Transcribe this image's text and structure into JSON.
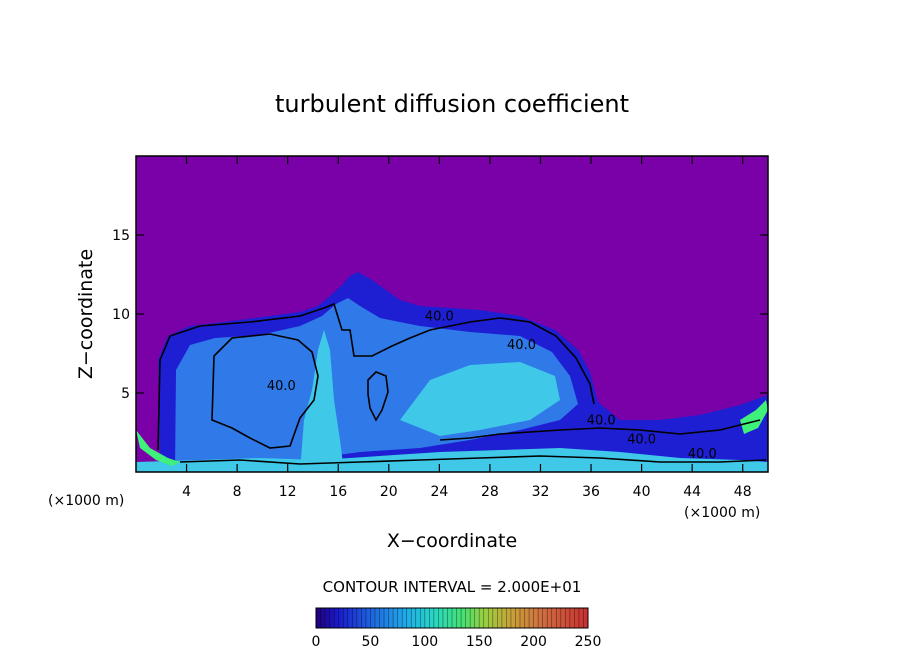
{
  "chart_data": {
    "type": "heatmap",
    "title": "turbulent diffusion coefficient",
    "xlabel": "X−coordinate",
    "ylabel": "Z−coordinate",
    "x_unit_label": "(×1000 m)",
    "x_unit_label_right": "(×1000 m)",
    "xlim": [
      0,
      50
    ],
    "ylim": [
      0,
      20
    ],
    "x_ticks": [
      "4",
      "8",
      "12",
      "16",
      "20",
      "24",
      "28",
      "32",
      "36",
      "40",
      "44",
      "48"
    ],
    "x_tick_values": [
      4,
      8,
      12,
      16,
      20,
      24,
      28,
      32,
      36,
      40,
      44,
      48
    ],
    "y_ticks": [
      "5",
      "10",
      "15"
    ],
    "y_tick_values": [
      5,
      10,
      15
    ],
    "contour_interval_label": "CONTOUR INTERVAL = 2.000E+01",
    "contour_interval": 20,
    "contour_labels": [
      {
        "text": "40.0",
        "x": 24.0,
        "y": 9.6
      },
      {
        "text": "40.0",
        "x": 30.5,
        "y": 7.8
      },
      {
        "text": "40.0",
        "x": 11.5,
        "y": 5.2
      },
      {
        "text": "40.0",
        "x": 36.8,
        "y": 3.0
      },
      {
        "text": "40.0",
        "x": 40.0,
        "y": 1.8
      },
      {
        "text": "40.0",
        "x": 44.8,
        "y": 0.9
      }
    ],
    "colorbar": {
      "min": 0,
      "max": 250,
      "tick_labels": [
        "0",
        "50",
        "100",
        "150",
        "200",
        "250"
      ],
      "tick_values": [
        0,
        50,
        100,
        150,
        200,
        250
      ]
    },
    "colors": {
      "background_field": "#7a00a8",
      "low_blue": "#1e1ed2",
      "mid_blue": "#2f7ae8",
      "cyan": "#3fc8e8",
      "green": "#3ff07a"
    }
  }
}
